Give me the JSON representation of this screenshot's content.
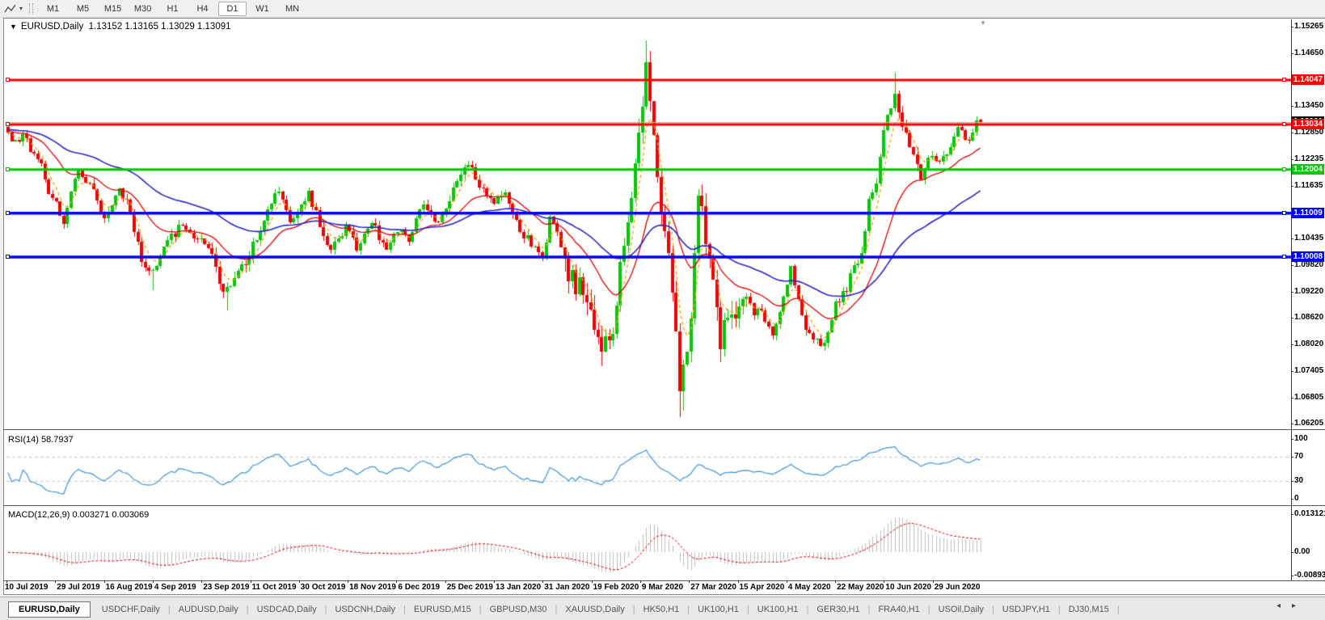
{
  "toolbar": {
    "chart_tool_icon": "zigzag-cursor-icon",
    "dropdown_glyph": "▾",
    "timeframes": [
      {
        "label": "M1",
        "active": false
      },
      {
        "label": "M5",
        "active": false
      },
      {
        "label": "M15",
        "active": false
      },
      {
        "label": "M30",
        "active": false
      },
      {
        "label": "H1",
        "active": false
      },
      {
        "label": "H4",
        "active": false
      },
      {
        "label": "D1",
        "active": true
      },
      {
        "label": "W1",
        "active": false
      },
      {
        "label": "MN",
        "active": false
      }
    ]
  },
  "main_chart": {
    "menu_glyph": "▼",
    "symbol": "EURUSD,Daily",
    "ohlc_text": "1.13152 1.13165 1.13029 1.13091",
    "shift_marker_glyph": "▼"
  },
  "indicator_panels": {
    "rsi": {
      "label": "RSI(14) 58.7937",
      "value": 58.7937,
      "period": 14,
      "line_color": "#3E93D9",
      "level_color": "#C8C8C8",
      "axis": [
        {
          "label": "100",
          "value": 100,
          "dashed": false
        },
        {
          "label": "70",
          "value": 70,
          "dashed": true
        },
        {
          "label": "30",
          "value": 30,
          "dashed": true
        },
        {
          "label": "0",
          "value": 0,
          "dashed": false
        }
      ]
    },
    "macd": {
      "label": "MACD(12,26,9) 0.003271 0.003069",
      "params": [
        12,
        26,
        9
      ],
      "macd_value": 0.003271,
      "signal_value": 0.003069,
      "histogram_color": "#BEBEBE",
      "signal_color": "#E00000",
      "axis": [
        {
          "label": "0.013121",
          "value": 0.013121
        },
        {
          "label": "0.00",
          "value": 0
        },
        {
          "label": "-0.008933",
          "value": -0.008933
        }
      ]
    }
  },
  "chart_data": {
    "type": "candlestick",
    "symbol": "EURUSD",
    "timeframe": "Daily",
    "background": "#FFFFFF",
    "up_color": "#00C800",
    "down_color": "#F00000",
    "last_ohlc": {
      "open": 1.13152,
      "high": 1.13165,
      "low": 1.13029,
      "close": 1.13091
    },
    "ylim": [
      1.06205,
      1.1543
    ],
    "y_ticks": [
      {
        "label": "1.15265",
        "price": 1.15265
      },
      {
        "label": "1.14650",
        "price": 1.1465
      },
      {
        "label": "1.13450",
        "price": 1.1345
      },
      {
        "label": "1.12850",
        "price": 1.1285
      },
      {
        "label": "1.12235",
        "price": 1.12235
      },
      {
        "label": "1.11635",
        "price": 1.11635
      },
      {
        "label": "1.10435",
        "price": 1.10435
      },
      {
        "label": "1.09820",
        "price": 1.0982
      },
      {
        "label": "1.09220",
        "price": 1.0922
      },
      {
        "label": "1.08620",
        "price": 1.0862
      },
      {
        "label": "1.08020",
        "price": 1.0802
      },
      {
        "label": "1.07405",
        "price": 1.07405
      },
      {
        "label": "1.06805",
        "price": 1.06805
      },
      {
        "label": "1.06205",
        "price": 1.06205
      }
    ],
    "x_tick_labels": [
      "10 Jul 2019",
      "29 Jul 2019",
      "16 Aug 2019",
      "4 Sep 2019",
      "23 Sep 2019",
      "11 Oct 2019",
      "30 Oct 2019",
      "18 Nov 2019",
      "6 Dec 2019",
      "25 Dec 2019",
      "13 Jan 2020",
      "31 Jan 2020",
      "19 Feb 2020",
      "9 Mar 2020",
      "27 Mar 2020",
      "15 Apr 2020",
      "4 May 2020",
      "22 May 2020",
      "10 Jun 2020",
      "29 Jun 2020"
    ],
    "bars_per_xtick": 13,
    "horizontal_lines": [
      {
        "label": "1.14047",
        "price": 1.14047,
        "color": "#FF0000",
        "thickness": 3
      },
      {
        "label": "1.13034",
        "price": 1.13034,
        "color": "#FF0000",
        "thickness": 3
      },
      {
        "label": "1.12004",
        "price": 1.12004,
        "color": "#00C800",
        "thickness": 3
      },
      {
        "label": "1.11009",
        "price": 1.11009,
        "color": "#0000FF",
        "thickness": 3.5
      },
      {
        "label": "1.10008",
        "price": 1.10008,
        "color": "#0000FF",
        "thickness": 3.5
      }
    ],
    "current_price": {
      "label": "1.13091",
      "price": 1.13091,
      "line_color": "#B4B4B4",
      "box_color": "#000000"
    },
    "moving_averages": [
      {
        "period": 5,
        "color": "#FFA000",
        "style": "dashed"
      },
      {
        "period": 21,
        "color": "#E00000",
        "style": "solid"
      },
      {
        "period": 55,
        "color": "#2828C8",
        "style": "solid"
      }
    ],
    "base_volatility": 0.0022,
    "volatility_zones": [
      {
        "from": 55,
        "to": 70,
        "vol": 0.003
      },
      {
        "from": 150,
        "to": 200,
        "vol": 0.006
      },
      {
        "from": 230,
        "to": 246,
        "vol": 0.0032
      }
    ],
    "close_waypoints": [
      [
        0,
        1.1285
      ],
      [
        2,
        1.1268
      ],
      [
        4,
        1.1282
      ],
      [
        6,
        1.124
      ],
      [
        9,
        1.1215
      ],
      [
        11,
        1.1145
      ],
      [
        13,
        1.1128
      ],
      [
        15,
        1.1076
      ],
      [
        17,
        1.115
      ],
      [
        19,
        1.1199
      ],
      [
        22,
        1.1168
      ],
      [
        26,
        1.109
      ],
      [
        30,
        1.1158
      ],
      [
        33,
        1.1101
      ],
      [
        36,
        1.099
      ],
      [
        39,
        1.0972
      ],
      [
        43,
        1.104
      ],
      [
        47,
        1.1073
      ],
      [
        50,
        1.1043
      ],
      [
        54,
        1.1021
      ],
      [
        57,
        1.094
      ],
      [
        59,
        1.0932
      ],
      [
        63,
        1.0985
      ],
      [
        67,
        1.104
      ],
      [
        70,
        1.111
      ],
      [
        73,
        1.115
      ],
      [
        76,
        1.108
      ],
      [
        79,
        1.112
      ],
      [
        81,
        1.1152
      ],
      [
        84,
        1.107
      ],
      [
        87,
        1.1018
      ],
      [
        91,
        1.1075
      ],
      [
        94,
        1.1015
      ],
      [
        98,
        1.1078
      ],
      [
        102,
        1.1018
      ],
      [
        105,
        1.1058
      ],
      [
        108,
        1.1035
      ],
      [
        112,
        1.112
      ],
      [
        115,
        1.1082
      ],
      [
        118,
        1.1112
      ],
      [
        121,
        1.1175
      ],
      [
        124,
        1.1212
      ],
      [
        127,
        1.116
      ],
      [
        131,
        1.1122
      ],
      [
        134,
        1.1148
      ],
      [
        137,
        1.1085
      ],
      [
        141,
        1.1024
      ],
      [
        144,
        1.1
      ],
      [
        146,
        1.1093
      ],
      [
        148,
        1.1058
      ],
      [
        151,
        1.0946
      ],
      [
        155,
        1.0915
      ],
      [
        158,
        1.0835
      ],
      [
        160,
        1.0785
      ],
      [
        162,
        1.081
      ],
      [
        164,
        1.089
      ],
      [
        166,
        1.1026
      ],
      [
        168,
        1.1135
      ],
      [
        170,
        1.1285
      ],
      [
        172,
        1.1446
      ],
      [
        174,
        1.128
      ],
      [
        175,
        1.1184
      ],
      [
        177,
        1.106
      ],
      [
        179,
        1.092
      ],
      [
        181,
        1.0694
      ],
      [
        183,
        1.0785
      ],
      [
        184,
        1.086
      ],
      [
        186,
        1.1141
      ],
      [
        188,
        1.103
      ],
      [
        190,
        1.095
      ],
      [
        192,
        1.0791
      ],
      [
        194,
        1.0862
      ],
      [
        197,
        1.0888
      ],
      [
        199,
        1.091
      ],
      [
        201,
        1.0868
      ],
      [
        203,
        1.088
      ],
      [
        206,
        1.0822
      ],
      [
        208,
        1.0875
      ],
      [
        211,
        1.098
      ],
      [
        213,
        1.0905
      ],
      [
        215,
        1.0834
      ],
      [
        218,
        1.0815
      ],
      [
        220,
        1.0805
      ],
      [
        223,
        1.09
      ],
      [
        226,
        1.0922
      ],
      [
        228,
        1.0983
      ],
      [
        230,
        1.101
      ],
      [
        232,
        1.1134
      ],
      [
        234,
        1.1168
      ],
      [
        236,
        1.129
      ],
      [
        239,
        1.1373
      ],
      [
        241,
        1.1298
      ],
      [
        243,
        1.1252
      ],
      [
        246,
        1.1177
      ],
      [
        248,
        1.1228
      ],
      [
        251,
        1.1219
      ],
      [
        254,
        1.1252
      ],
      [
        256,
        1.1298
      ],
      [
        258,
        1.1268
      ],
      [
        260,
        1.1284
      ],
      [
        261,
        1.1312
      ],
      [
        262,
        1.13091
      ]
    ],
    "spikes": [
      {
        "bar": 39,
        "low": 1.0926
      },
      {
        "bar": 59,
        "low": 1.0879
      },
      {
        "bar": 160,
        "low": 1.0778
      },
      {
        "bar": 172,
        "high": 1.1495
      },
      {
        "bar": 181,
        "low": 1.0636
      },
      {
        "bar": 182,
        "low": 1.065
      },
      {
        "bar": 239,
        "high": 1.1422
      }
    ]
  },
  "tabs": [
    {
      "label": "EURUSD,Daily",
      "active": true
    },
    {
      "label": "USDCHF,Daily",
      "active": false
    },
    {
      "label": "AUDUSD,Daily",
      "active": false
    },
    {
      "label": "USDCAD,Daily",
      "active": false
    },
    {
      "label": "USDCNH,Daily",
      "active": false
    },
    {
      "label": "EURUSD,M15",
      "active": false
    },
    {
      "label": "GBPUSD,M30",
      "active": false
    },
    {
      "label": "XAUUSD,Daily",
      "active": false
    },
    {
      "label": "HK50,H1",
      "active": false
    },
    {
      "label": "UK100,H1",
      "active": false
    },
    {
      "label": "UK100,H1",
      "active": false
    },
    {
      "label": "GER30,H1",
      "active": false
    },
    {
      "label": "FRA40,H1",
      "active": false
    },
    {
      "label": "USOil,Daily",
      "active": false
    },
    {
      "label": "USDJPY,H1",
      "active": false
    },
    {
      "label": "DJ30,M15",
      "active": false
    }
  ],
  "tab_scroll": {
    "left_glyph": "◂",
    "right_glyph": "▸"
  }
}
